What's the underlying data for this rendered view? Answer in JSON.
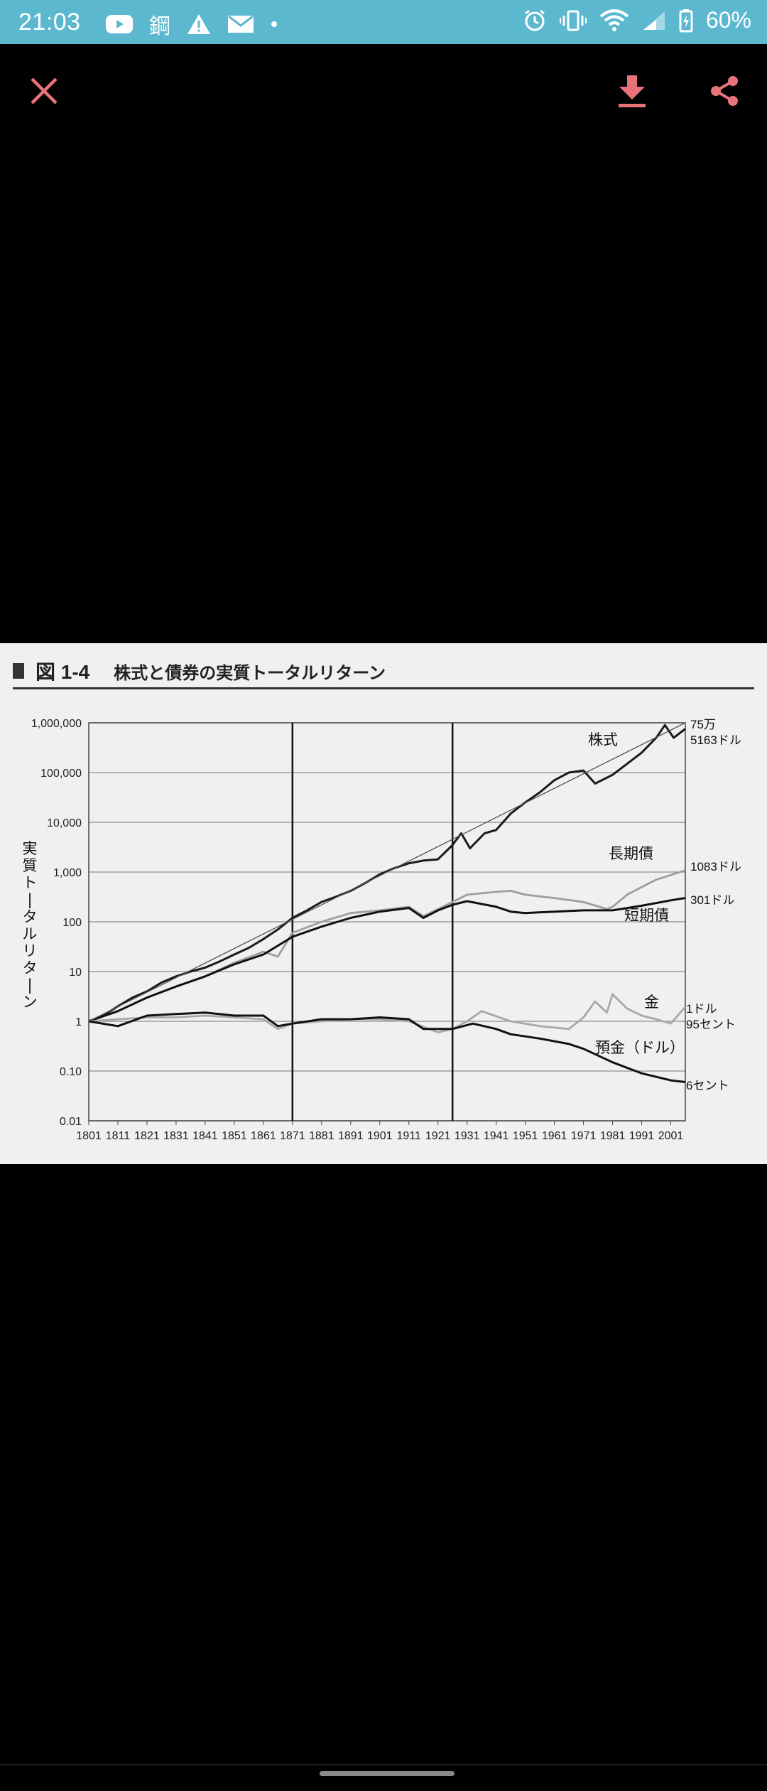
{
  "status_bar": {
    "time": "21:03",
    "left_icons": [
      "youtube-icon",
      "kanji-notification-icon",
      "warning-icon",
      "mail-icon",
      "dot-icon"
    ],
    "kanji_char": "鋼",
    "battery_text": "60%",
    "right_icons": [
      "alarm-icon",
      "vibrate-icon",
      "wifi-icon",
      "signal-icon",
      "battery-icon"
    ],
    "bg_color": "#5bb8cf"
  },
  "toolbar": {
    "close_icon": "close-icon",
    "download_icon": "download-icon",
    "share_icon": "share-icon",
    "icon_color": "#e8747a"
  },
  "figure": {
    "number": "図 1-4",
    "title": "株式と債券の実質トータルリターン",
    "ylabel": "実質トータルリターン"
  },
  "chart_data": {
    "type": "line",
    "y_scale": "log",
    "ylim": [
      0.01,
      1000000
    ],
    "xlim": [
      1801,
      2006
    ],
    "ytick_labels": [
      "1,000,000",
      "100,000",
      "10,000",
      "1,000",
      "100",
      "10",
      "1",
      "0.10",
      "0.01"
    ],
    "xtick_labels": [
      "1801",
      "1811",
      "1821",
      "1831",
      "1841",
      "1851",
      "1861",
      "1871",
      "1881",
      "1891",
      "1901",
      "1911",
      "1921",
      "1931",
      "1941",
      "1951",
      "1961",
      "1971",
      "1981",
      "1991",
      "2001"
    ],
    "vertical_lines": [
      1871,
      1926
    ],
    "series": [
      {
        "name": "株式",
        "color": "#1a1a1a",
        "points": [
          [
            1801,
            1
          ],
          [
            1806,
            1.3
          ],
          [
            1811,
            2
          ],
          [
            1816,
            3
          ],
          [
            1821,
            4
          ],
          [
            1826,
            6
          ],
          [
            1831,
            8
          ],
          [
            1836,
            10
          ],
          [
            1841,
            12
          ],
          [
            1846,
            16
          ],
          [
            1851,
            22
          ],
          [
            1856,
            30
          ],
          [
            1861,
            45
          ],
          [
            1866,
            70
          ],
          [
            1871,
            120
          ],
          [
            1876,
            170
          ],
          [
            1881,
            250
          ],
          [
            1886,
            320
          ],
          [
            1891,
            420
          ],
          [
            1896,
            600
          ],
          [
            1901,
            900
          ],
          [
            1906,
            1200
          ],
          [
            1911,
            1500
          ],
          [
            1916,
            1700
          ],
          [
            1921,
            1800
          ],
          [
            1926,
            3500
          ],
          [
            1929,
            6000
          ],
          [
            1932,
            3000
          ],
          [
            1937,
            6000
          ],
          [
            1941,
            7000
          ],
          [
            1946,
            15000
          ],
          [
            1951,
            25000
          ],
          [
            1956,
            40000
          ],
          [
            1961,
            70000
          ],
          [
            1966,
            100000
          ],
          [
            1971,
            110000
          ],
          [
            1975,
            60000
          ],
          [
            1981,
            90000
          ],
          [
            1986,
            150000
          ],
          [
            1991,
            250000
          ],
          [
            1996,
            500000
          ],
          [
            1999,
            900000
          ],
          [
            2002,
            500000
          ],
          [
            2006,
            755163
          ]
        ],
        "end_label": [
          "75万",
          "5163ドル"
        ]
      },
      {
        "name": "長期債",
        "color": "#9e9e9e",
        "points": [
          [
            1801,
            1
          ],
          [
            1811,
            1.6
          ],
          [
            1821,
            3
          ],
          [
            1831,
            5
          ],
          [
            1841,
            8
          ],
          [
            1851,
            15
          ],
          [
            1861,
            25
          ],
          [
            1866,
            20
          ],
          [
            1871,
            60
          ],
          [
            1881,
            100
          ],
          [
            1891,
            150
          ],
          [
            1901,
            170
          ],
          [
            1911,
            200
          ],
          [
            1916,
            130
          ],
          [
            1921,
            180
          ],
          [
            1926,
            250
          ],
          [
            1931,
            350
          ],
          [
            1941,
            400
          ],
          [
            1946,
            420
          ],
          [
            1951,
            350
          ],
          [
            1961,
            300
          ],
          [
            1971,
            250
          ],
          [
            1979,
            180
          ],
          [
            1981,
            200
          ],
          [
            1986,
            350
          ],
          [
            1991,
            500
          ],
          [
            1996,
            700
          ],
          [
            2006,
            1083
          ]
        ],
        "end_label": [
          "1083ドル"
        ]
      },
      {
        "name": "短期債",
        "color": "#111111",
        "points": [
          [
            1801,
            1
          ],
          [
            1811,
            1.6
          ],
          [
            1821,
            3
          ],
          [
            1831,
            5
          ],
          [
            1841,
            8
          ],
          [
            1851,
            14
          ],
          [
            1861,
            22
          ],
          [
            1871,
            50
          ],
          [
            1881,
            80
          ],
          [
            1891,
            120
          ],
          [
            1901,
            160
          ],
          [
            1911,
            190
          ],
          [
            1916,
            120
          ],
          [
            1921,
            170
          ],
          [
            1926,
            220
          ],
          [
            1931,
            260
          ],
          [
            1941,
            200
          ],
          [
            1946,
            160
          ],
          [
            1951,
            150
          ],
          [
            1961,
            160
          ],
          [
            1971,
            170
          ],
          [
            1981,
            170
          ],
          [
            1991,
            210
          ],
          [
            2001,
            270
          ],
          [
            2006,
            301
          ]
        ],
        "end_label": [
          "301ドル"
        ]
      },
      {
        "name": "金",
        "color": "#a8a8a8",
        "points": [
          [
            1801,
            1
          ],
          [
            1811,
            1.1
          ],
          [
            1821,
            1.2
          ],
          [
            1831,
            1.2
          ],
          [
            1841,
            1.3
          ],
          [
            1851,
            1.2
          ],
          [
            1861,
            1.1
          ],
          [
            1866,
            0.7
          ],
          [
            1871,
            0.9
          ],
          [
            1881,
            1
          ],
          [
            1891,
            1.1
          ],
          [
            1901,
            1.1
          ],
          [
            1911,
            1
          ],
          [
            1921,
            0.6
          ],
          [
            1926,
            0.7
          ],
          [
            1931,
            1
          ],
          [
            1936,
            1.6
          ],
          [
            1946,
            1
          ],
          [
            1956,
            0.8
          ],
          [
            1966,
            0.7
          ],
          [
            1971,
            1.2
          ],
          [
            1975,
            2.5
          ],
          [
            1979,
            1.5
          ],
          [
            1981,
            3.5
          ],
          [
            1986,
            1.8
          ],
          [
            1991,
            1.3
          ],
          [
            1996,
            1.1
          ],
          [
            2001,
            0.9
          ],
          [
            2006,
            1.95
          ]
        ],
        "end_label": [
          "1ドル",
          "95セント"
        ]
      },
      {
        "name": "預金（ドル）",
        "color": "#111111",
        "points": [
          [
            1801,
            1
          ],
          [
            1811,
            0.8
          ],
          [
            1821,
            1.3
          ],
          [
            1831,
            1.4
          ],
          [
            1841,
            1.5
          ],
          [
            1851,
            1.3
          ],
          [
            1861,
            1.3
          ],
          [
            1866,
            0.8
          ],
          [
            1871,
            0.9
          ],
          [
            1881,
            1.1
          ],
          [
            1891,
            1.1
          ],
          [
            1901,
            1.2
          ],
          [
            1911,
            1.1
          ],
          [
            1916,
            0.7
          ],
          [
            1921,
            0.7
          ],
          [
            1926,
            0.7
          ],
          [
            1933,
            0.9
          ],
          [
            1941,
            0.7
          ],
          [
            1946,
            0.55
          ],
          [
            1956,
            0.45
          ],
          [
            1966,
            0.35
          ],
          [
            1971,
            0.28
          ],
          [
            1981,
            0.15
          ],
          [
            1991,
            0.09
          ],
          [
            2001,
            0.065
          ],
          [
            2006,
            0.06
          ]
        ],
        "end_label": [
          "6セント"
        ]
      },
      {
        "name": "",
        "color": "#555555",
        "points": [
          [
            1801,
            1
          ],
          [
            2006,
            1000000
          ]
        ]
      }
    ]
  },
  "nav_bar": {
    "handle_color": "#8a8a8a"
  }
}
